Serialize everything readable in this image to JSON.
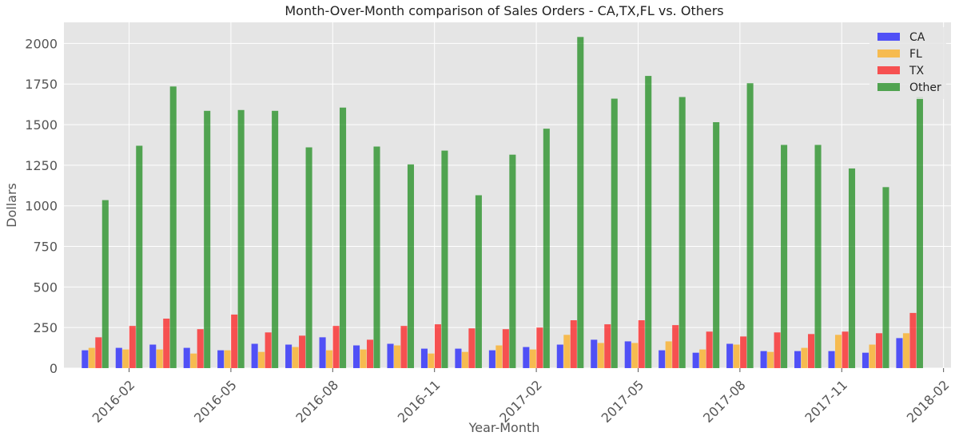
{
  "chart_data": {
    "type": "bar",
    "title": "Month-Over-Month comparison of Sales Orders - CA,TX,FL vs. Others",
    "xlabel": "Year-Month",
    "ylabel": "Dollars",
    "ylim": [
      0,
      2130
    ],
    "yticks": [
      0,
      250,
      500,
      750,
      1000,
      1250,
      1500,
      1750,
      2000
    ],
    "x_axis": {
      "start": "2016-01-01",
      "end": "2018-02-01",
      "ticks": [
        "2016-02",
        "2016-05",
        "2016-08",
        "2016-11",
        "2017-02",
        "2017-05",
        "2017-08",
        "2017-11",
        "2018-02"
      ]
    },
    "categories": [
      "2016-01",
      "2016-02",
      "2016-03",
      "2016-04",
      "2016-05",
      "2016-06",
      "2016-07",
      "2016-08",
      "2016-09",
      "2016-10",
      "2016-11",
      "2016-12",
      "2017-01",
      "2017-02",
      "2017-03",
      "2017-04",
      "2017-05",
      "2017-06",
      "2017-07",
      "2017-08",
      "2017-09",
      "2017-10",
      "2017-11",
      "2017-12"
    ],
    "series": [
      {
        "name": "CA",
        "color": "#0000ff",
        "values": [
          110,
          125,
          145,
          125,
          110,
          150,
          145,
          190,
          140,
          150,
          120,
          120,
          110,
          130,
          145,
          175,
          165,
          110,
          95,
          150,
          105,
          105,
          105,
          95
        ]
      },
      {
        "name": "FL",
        "color": "#ffa500",
        "values": [
          125,
          115,
          115,
          90,
          110,
          100,
          130,
          110,
          115,
          140,
          90,
          100,
          140,
          115,
          205,
          155,
          155,
          165,
          115,
          145,
          100,
          125,
          205,
          145
        ]
      },
      {
        "name": "TX",
        "color": "#ff0000",
        "values": [
          190,
          260,
          305,
          240,
          330,
          220,
          200,
          260,
          175,
          260,
          270,
          245,
          240,
          250,
          295,
          270,
          295,
          265,
          225,
          195,
          220,
          210,
          225,
          215
        ]
      },
      {
        "name": "Other",
        "color": "#008000",
        "values": [
          1035,
          1370,
          1735,
          1585,
          1590,
          1585,
          1360,
          1605,
          1365,
          1255,
          1340,
          1065,
          1315,
          1475,
          2040,
          1660,
          1800,
          1670,
          1515,
          1755,
          1375,
          1375,
          1230,
          1115
        ]
      }
    ],
    "extra_bars": [
      {
        "category": "2018-01",
        "series": "CA",
        "value": 185
      },
      {
        "category": "2018-01",
        "series": "FL",
        "value": 215
      },
      {
        "category": "2018-01",
        "series": "TX",
        "value": 340
      },
      {
        "category": "2018-01",
        "series": "Other",
        "value": 1670
      }
    ],
    "legend": {
      "position": "top-right",
      "entries": [
        "CA",
        "FL",
        "TX",
        "Other"
      ]
    },
    "grid": true,
    "background": "#e5e5e5",
    "bar_alpha": 0.65
  }
}
